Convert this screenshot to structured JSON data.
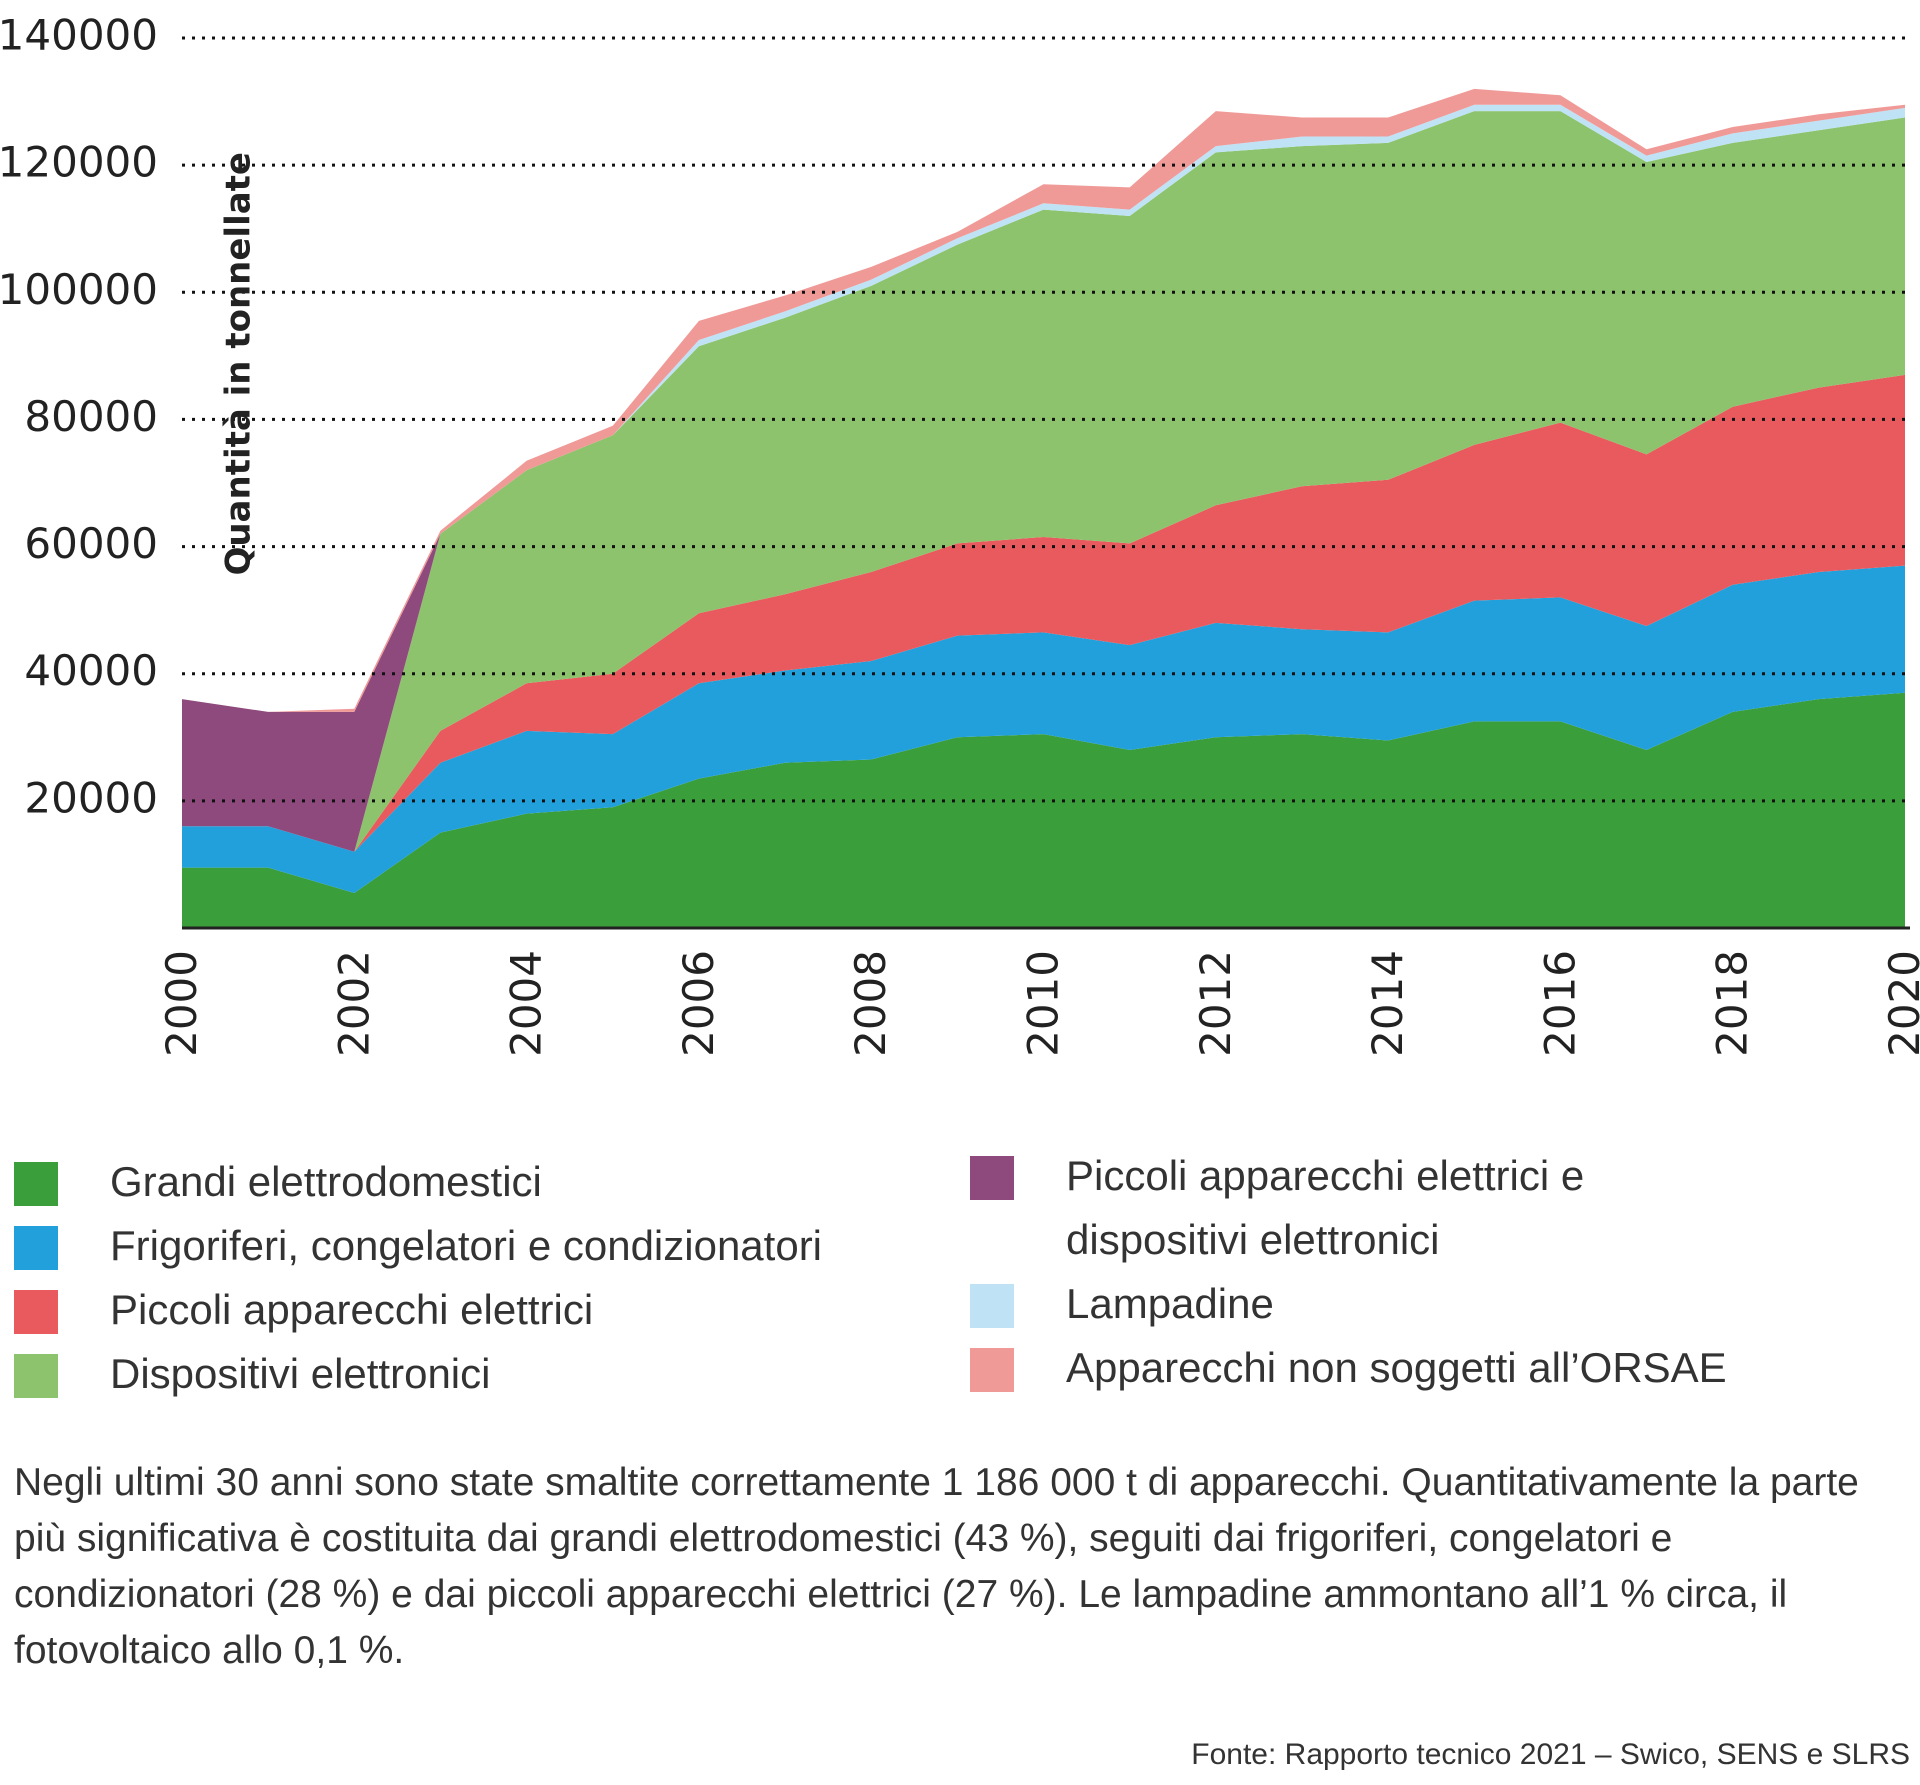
{
  "chart_data": {
    "type": "area",
    "stacked": true,
    "ylabel": "Quantità in tonnellate",
    "ylim": [
      0,
      140000
    ],
    "yticks": [
      "20000",
      "40000",
      "60000",
      "80000",
      "100000",
      "120000",
      "140000"
    ],
    "xticks": [
      "2000",
      "2002",
      "2004",
      "2006",
      "2008",
      "2010",
      "2012",
      "2014",
      "2016",
      "2018",
      "2020"
    ],
    "x": [
      2000,
      2001,
      2002,
      2003,
      2004,
      2005,
      2006,
      2007,
      2008,
      2009,
      2010,
      2011,
      2012,
      2013,
      2014,
      2015,
      2016,
      2017,
      2018,
      2019,
      2020
    ],
    "grid": "horizontal dotted",
    "series": [
      {
        "name": "Grandi elettrodomestici",
        "color": "#3a9e3a",
        "values": [
          9500,
          9500,
          5500,
          15000,
          18000,
          19000,
          23500,
          26000,
          26500,
          30000,
          30500,
          28000,
          30000,
          30500,
          29500,
          32500,
          32500,
          28000,
          34000,
          36000,
          37000
        ]
      },
      {
        "name": "Frigoriferi, congelatori e condizionatori",
        "color": "#22a0dc",
        "values": [
          6500,
          6500,
          6500,
          11000,
          13000,
          11500,
          15000,
          14500,
          15500,
          16000,
          16000,
          16500,
          18000,
          16500,
          17000,
          19000,
          19500,
          19500,
          20000,
          20000,
          20000
        ]
      },
      {
        "name": "Piccoli apparecchi elettrici",
        "color": "#e85a5e",
        "values": [
          0,
          0,
          0,
          5000,
          7500,
          9500,
          11000,
          12000,
          14000,
          14500,
          15000,
          16000,
          18500,
          22500,
          24000,
          24500,
          27500,
          27000,
          28000,
          29000,
          30000
        ]
      },
      {
        "name": "Dispositivi elettronici",
        "color": "#8cc36c",
        "values": [
          0,
          0,
          0,
          31000,
          33500,
          37500,
          42000,
          43500,
          45000,
          47000,
          51500,
          51500,
          55500,
          53500,
          53000,
          52500,
          49000,
          46000,
          41500,
          40500,
          40500
        ]
      },
      {
        "name": "Piccoli apparecchi elettrici e dispositivi elettronici",
        "color": "#8e4a7c",
        "values": [
          20000,
          18000,
          22000,
          0,
          0,
          0,
          0,
          0,
          0,
          0,
          0,
          0,
          0,
          0,
          0,
          0,
          0,
          0,
          0,
          0,
          0
        ]
      },
      {
        "name": "Lampadine",
        "color": "#c0e2f5",
        "values": [
          0,
          0,
          0,
          0,
          0,
          0,
          1000,
          1000,
          1000,
          1000,
          1000,
          1000,
          1000,
          1500,
          1000,
          1000,
          1000,
          1000,
          1500,
          1500,
          1500
        ]
      },
      {
        "name": "Apparecchi non soggetti all’ORSAE",
        "color": "#f09a98",
        "values": [
          0,
          0,
          500,
          500,
          1500,
          1500,
          3000,
          2500,
          2000,
          1000,
          3000,
          3500,
          5500,
          3000,
          3000,
          2500,
          1500,
          1000,
          1000,
          1000,
          500
        ]
      }
    ]
  },
  "legend": {
    "left": [
      {
        "label": "Grandi elettrodomestici",
        "color": "#3a9e3a"
      },
      {
        "label": "Frigoriferi, congelatori e condizionatori",
        "color": "#22a0dc"
      },
      {
        "label": "Piccoli apparecchi elettrici",
        "color": "#e85a5e"
      },
      {
        "label": "Dispositivi elettronici",
        "color": "#8cc36c"
      }
    ],
    "right": [
      {
        "label": "Piccoli apparecchi elettrici e dispositivi elettronici",
        "color": "#8e4a7c"
      },
      {
        "label": "Lampadine",
        "color": "#c0e2f5"
      },
      {
        "label": "Apparecchi non soggetti all’ORSAE",
        "color": "#f09a98"
      }
    ]
  },
  "note": "Negli ultimi 30 anni sono state smaltite correttamente 1 186 000 t di apparecchi. Quantitativamente la parte più significativa è costituita dai grandi elettrodomestici (43 %), seguiti dai frigoriferi, congelatori e condizionatori (28 %) e dai piccoli apparecchi elettrici (27 %). Le lampadine ammontano all’1 % circa, il fotovoltaico allo 0,1 %.",
  "source": "Fonte: Rapporto tecnico 2021 – Swico, SENS e SLRS"
}
